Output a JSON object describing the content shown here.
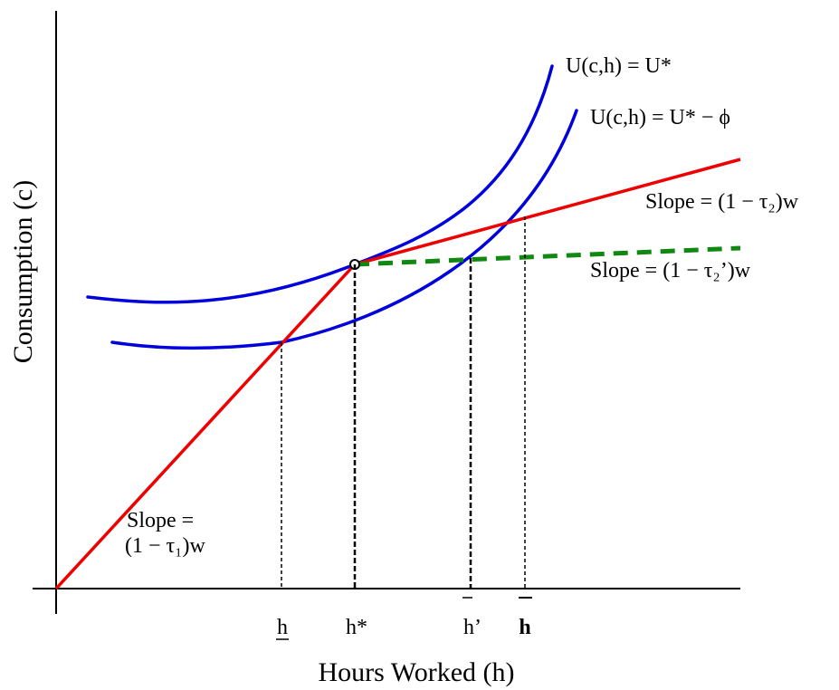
{
  "axes": {
    "y_label": "Consumption (c)",
    "x_label": "Hours Worked (h)"
  },
  "curves": {
    "upper_indifference_label": "U(c,h) = U*",
    "lower_indifference_label": "U(c,h) = U* − ϕ"
  },
  "budget": {
    "slope_tau1_line1": "Slope =",
    "slope_tau1_line2": "(1 − τ₁)w",
    "slope_tau2": "Slope = (1 − τ₂)w",
    "slope_tau2_prime": "Slope = (1 − τ₂’)w"
  },
  "ticks": {
    "h_low": "h",
    "h_star": "h*",
    "h_bar_prime": "h’",
    "h_bar": "h"
  },
  "colors": {
    "indifference": "#0000dd",
    "budget": "#ee0000",
    "budget_prime": "#118811",
    "axis": "#000000"
  }
}
